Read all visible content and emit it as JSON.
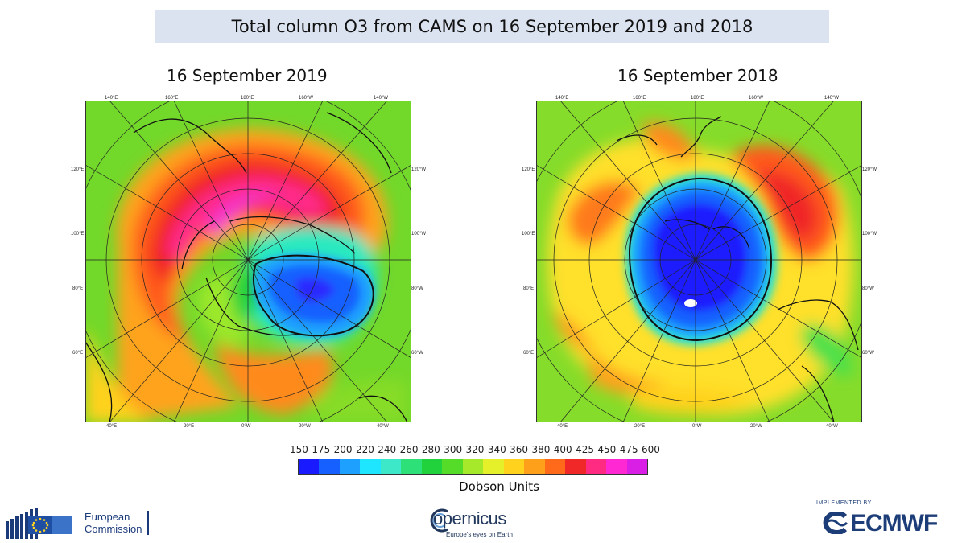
{
  "header": {
    "title": "Total column O3 from CAMS on 16 September 2019 and 2018"
  },
  "maps": [
    {
      "title": "16 September 2019"
    },
    {
      "title": "16 September 2018"
    }
  ],
  "longitude_labels": {
    "top": [
      "140°E",
      "160°E",
      "180°E",
      "160°W",
      "140°W"
    ],
    "bottom": [
      "40°E",
      "20°E",
      "0°W",
      "20°W",
      "40°W"
    ],
    "left": [
      "120°E",
      "100°E",
      "80°E",
      "60°E"
    ],
    "right": [
      "120°W",
      "100°W",
      "80°W",
      "60°W"
    ]
  },
  "colorbar": {
    "ticks": [
      "150",
      "175",
      "200",
      "220",
      "240",
      "260",
      "280",
      "300",
      "320",
      "340",
      "360",
      "380",
      "400",
      "425",
      "450",
      "475",
      "600"
    ],
    "colors": [
      "#1a1aff",
      "#1560ff",
      "#1ea0ff",
      "#1ee6ff",
      "#3ce8c8",
      "#2ee078",
      "#22d23c",
      "#55dc28",
      "#a6e82a",
      "#e6f02a",
      "#ffd21e",
      "#ffa01a",
      "#ff6a1a",
      "#f02828",
      "#ff2a82",
      "#ff28d2",
      "#d91ee6"
    ],
    "units": "Dobson Units"
  },
  "logos": {
    "ec_line1": "European",
    "ec_line2": "Commission",
    "copernicus": "opernicus",
    "copernicus_tagline": "Europe's eyes on Earth",
    "ecmwf_implemented": "IMPLEMENTED BY",
    "ecmwf": "ECMWF"
  }
}
